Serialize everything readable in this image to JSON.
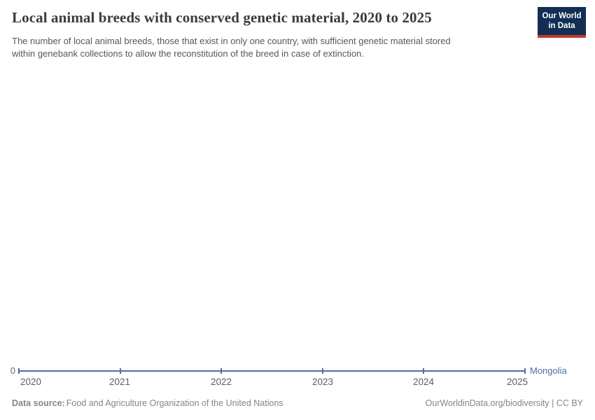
{
  "header": {
    "title": "Local animal breeds with conserved genetic material, 2020 to 2025",
    "subtitle_line1": "The number of local animal breeds, those that exist in only one country, with sufficient genetic material stored",
    "subtitle_line2": "within genebank collections to allow the reconstitution of the breed in case of extinction.",
    "logo": {
      "line1": "Our World",
      "line2": "in Data",
      "bg_color": "#132e54",
      "accent_color": "#c0392b"
    }
  },
  "chart_data": {
    "type": "line",
    "title": "Local animal breeds with conserved genetic material, 2020 to 2025",
    "x": [
      "2020",
      "2021",
      "2022",
      "2023",
      "2024",
      "2025"
    ],
    "series": [
      {
        "name": "Mongolia",
        "values": [
          0,
          0,
          0,
          0,
          0,
          0
        ],
        "color": "#4c6fac"
      }
    ],
    "y_ticks": [
      "0"
    ],
    "ylim": [
      0,
      0
    ],
    "grid": false,
    "legend_position": "right-of-line-end",
    "marker_style": "vertical-tick"
  },
  "footer": {
    "data_source_label": "Data source:",
    "data_source_value": "Food and Agriculture Organization of the United Nations",
    "credit": "OurWorldinData.org/biodiversity | CC BY"
  }
}
